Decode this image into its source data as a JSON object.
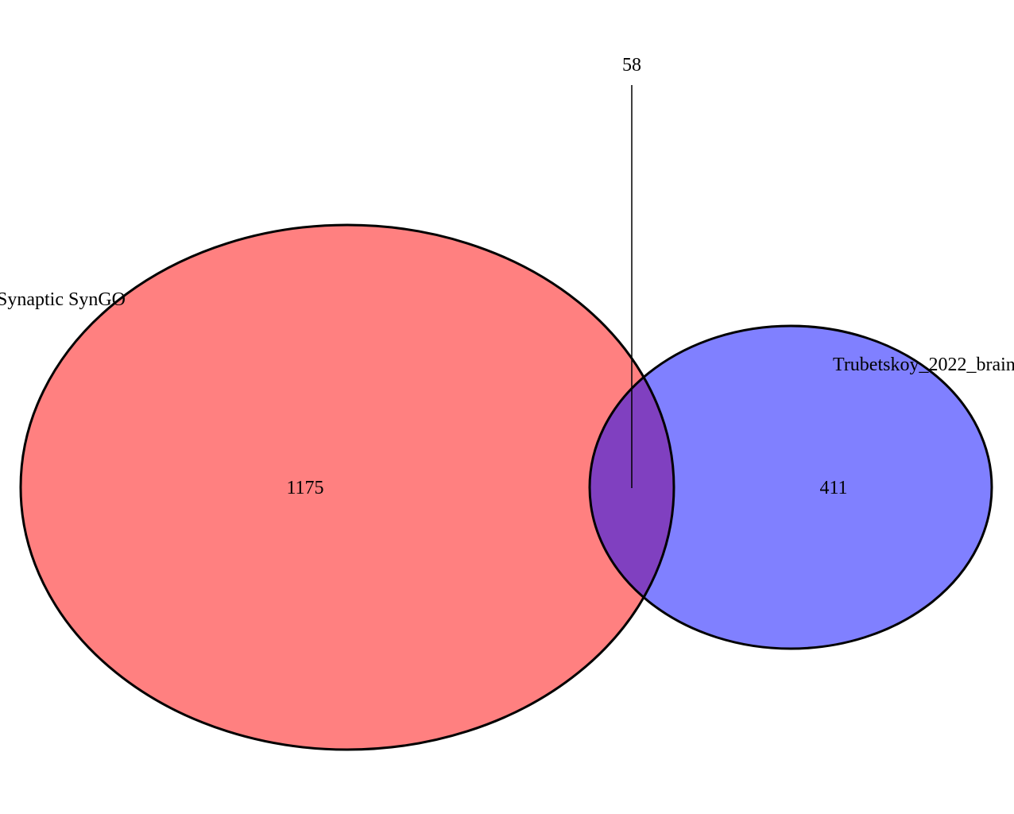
{
  "sets": [
    {
      "label": "Synaptic SynGO",
      "only_count": "1175",
      "fill": "#ff8080",
      "stroke": "#000000"
    },
    {
      "label": "Trubetskoy_2022_brain",
      "only_count": "411",
      "fill": "#8080ff",
      "stroke": "#000000"
    }
  ],
  "intersection": {
    "count": "58",
    "fill": "#8040c0"
  }
}
